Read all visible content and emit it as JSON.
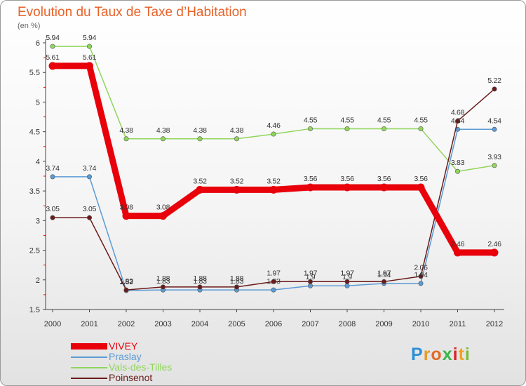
{
  "header": {
    "title": "Evolution du Taux de Taxe d’Habitation",
    "unit": "(en %)"
  },
  "brand": {
    "letters": [
      "P",
      "r",
      "o",
      "x",
      "i",
      "t",
      "i"
    ],
    "colors": [
      "#2b8fd6",
      "#e89a2a",
      "#e36a2a",
      "#3ab54a",
      "#d8232a",
      "#f2a31b",
      "#7dbb3a"
    ]
  },
  "chart_data": {
    "type": "line",
    "title": "Evolution du Taux de Taxe d’Habitation",
    "ylabel": "(en %)",
    "xlabel": "",
    "x": [
      "2000",
      "2001",
      "2002",
      "2003",
      "2004",
      "2005",
      "2006",
      "2007",
      "2008",
      "2009",
      "2010",
      "2011",
      "2012"
    ],
    "ylim": [
      1.5,
      6
    ],
    "yticks": [
      "1.5",
      "2",
      "2.5",
      "3",
      "3.5",
      "4",
      "4.5",
      "5",
      "5.5",
      "6"
    ],
    "grid": false,
    "legend": "bottom-left",
    "series": [
      {
        "name": "VIVEY",
        "color": "#e8000b",
        "thick": true,
        "values": [
          5.61,
          5.61,
          3.08,
          3.08,
          3.52,
          3.52,
          3.52,
          3.56,
          3.56,
          3.56,
          3.56,
          2.46,
          2.46
        ],
        "labels": [
          "5.61",
          "5.61",
          "3.08",
          "3.08",
          "3.52",
          "3.52",
          "3.52",
          "3.56",
          "3.56",
          "3.56",
          "3.56",
          "2.46",
          "2.46"
        ]
      },
      {
        "name": "Praslay",
        "color": "#5b9bd5",
        "values": [
          3.74,
          3.74,
          1.82,
          1.83,
          1.83,
          1.83,
          1.83,
          1.9,
          1.9,
          1.94,
          1.94,
          4.54,
          4.54
        ],
        "labels": [
          "3.74",
          "3.74",
          "1.82",
          "1.83",
          "1.83",
          "1.83",
          "1.83",
          "1.9",
          "1.9",
          "1.94",
          "1.94",
          "4.54",
          "4.54"
        ]
      },
      {
        "name": "Vals-des-Tilles",
        "color": "#8fd65b",
        "values": [
          5.94,
          5.94,
          4.38,
          4.38,
          4.38,
          4.38,
          4.46,
          4.55,
          4.55,
          4.55,
          4.55,
          3.83,
          3.93
        ],
        "labels": [
          "5.94",
          "5.94",
          "4.38",
          "4.38",
          "4.38",
          "4.38",
          "4.46",
          "4.55",
          "4.55",
          "4.55",
          "4.55",
          "3.83",
          "3.93"
        ]
      },
      {
        "name": "Poinsenot",
        "color": "#6b1a1a",
        "values": [
          3.05,
          3.05,
          1.83,
          1.88,
          1.88,
          1.88,
          1.97,
          1.97,
          1.97,
          1.97,
          2.06,
          4.68,
          5.22
        ],
        "labels": [
          "3.05",
          "3.05",
          "1.83",
          "1.88",
          "1.88",
          "1.88",
          "1.97",
          "1.97",
          "1.97",
          "1.97",
          "2.06",
          "4.68",
          "5.22"
        ]
      }
    ]
  }
}
